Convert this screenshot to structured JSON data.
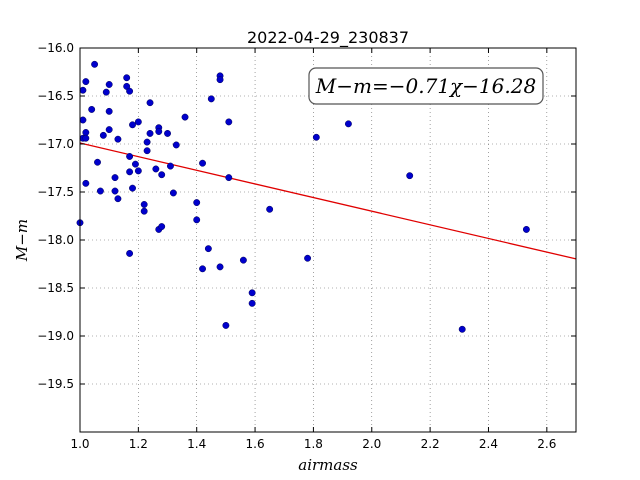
{
  "chart_data": {
    "type": "scatter",
    "title": "2022-04-29_230837",
    "xlabel": "airmass",
    "ylabel": "M−m",
    "xlim": [
      1.0,
      2.7
    ],
    "ylim": [
      -16.0,
      -20.0
    ],
    "y_inverted": true,
    "grid": true,
    "x_ticks": [
      "1.0",
      "1.2",
      "1.4",
      "1.6",
      "1.8",
      "2.0",
      "2.2",
      "2.4",
      "2.6"
    ],
    "y_ticks": [
      "−16.0",
      "−16.5",
      "−17.0",
      "−17.5",
      "−18.0",
      "−18.5",
      "−19.0",
      "−19.5"
    ],
    "annotation": "M−m=−0.71χ−16.28",
    "fit_line": {
      "slope": -0.71,
      "intercept": -16.28,
      "color": "#e00000"
    },
    "marker_color": "#0000cc",
    "points": [
      [
        1.0,
        -17.82
      ],
      [
        1.01,
        -16.75
      ],
      [
        1.01,
        -16.44
      ],
      [
        1.02,
        -16.35
      ],
      [
        1.02,
        -16.88
      ],
      [
        1.01,
        -16.94
      ],
      [
        1.02,
        -16.94
      ],
      [
        1.02,
        -17.41
      ],
      [
        1.04,
        -16.64
      ],
      [
        1.05,
        -16.17
      ],
      [
        1.06,
        -17.19
      ],
      [
        1.07,
        -17.49
      ],
      [
        1.08,
        -16.91
      ],
      [
        1.09,
        -16.46
      ],
      [
        1.1,
        -16.38
      ],
      [
        1.1,
        -16.66
      ],
      [
        1.1,
        -16.85
      ],
      [
        1.12,
        -17.35
      ],
      [
        1.12,
        -17.49
      ],
      [
        1.13,
        -16.95
      ],
      [
        1.13,
        -17.57
      ],
      [
        1.16,
        -16.31
      ],
      [
        1.16,
        -16.4
      ],
      [
        1.17,
        -16.45
      ],
      [
        1.17,
        -17.13
      ],
      [
        1.17,
        -17.29
      ],
      [
        1.17,
        -18.14
      ],
      [
        1.18,
        -16.8
      ],
      [
        1.18,
        -17.46
      ],
      [
        1.19,
        -17.21
      ],
      [
        1.2,
        -16.77
      ],
      [
        1.2,
        -17.28
      ],
      [
        1.22,
        -17.63
      ],
      [
        1.22,
        -17.7
      ],
      [
        1.23,
        -16.98
      ],
      [
        1.23,
        -17.07
      ],
      [
        1.24,
        -16.57
      ],
      [
        1.24,
        -16.89
      ],
      [
        1.26,
        -17.26
      ],
      [
        1.27,
        -16.83
      ],
      [
        1.27,
        -16.87
      ],
      [
        1.27,
        -17.89
      ],
      [
        1.28,
        -17.32
      ],
      [
        1.28,
        -17.86
      ],
      [
        1.3,
        -16.89
      ],
      [
        1.31,
        -17.23
      ],
      [
        1.32,
        -17.51
      ],
      [
        1.33,
        -17.01
      ],
      [
        1.36,
        -16.72
      ],
      [
        1.4,
        -17.61
      ],
      [
        1.4,
        -17.79
      ],
      [
        1.42,
        -17.2
      ],
      [
        1.42,
        -18.3
      ],
      [
        1.44,
        -18.09
      ],
      [
        1.45,
        -16.53
      ],
      [
        1.48,
        -18.28
      ],
      [
        1.48,
        -16.29
      ],
      [
        1.48,
        -16.33
      ],
      [
        1.5,
        -18.89
      ],
      [
        1.51,
        -16.77
      ],
      [
        1.51,
        -17.35
      ],
      [
        1.56,
        -18.21
      ],
      [
        1.59,
        -18.66
      ],
      [
        1.59,
        -18.55
      ],
      [
        1.65,
        -17.68
      ],
      [
        1.78,
        -18.19
      ],
      [
        1.81,
        -16.93
      ],
      [
        1.92,
        -16.79
      ],
      [
        2.13,
        -17.33
      ],
      [
        2.31,
        -18.93
      ],
      [
        2.53,
        -17.89
      ]
    ]
  }
}
